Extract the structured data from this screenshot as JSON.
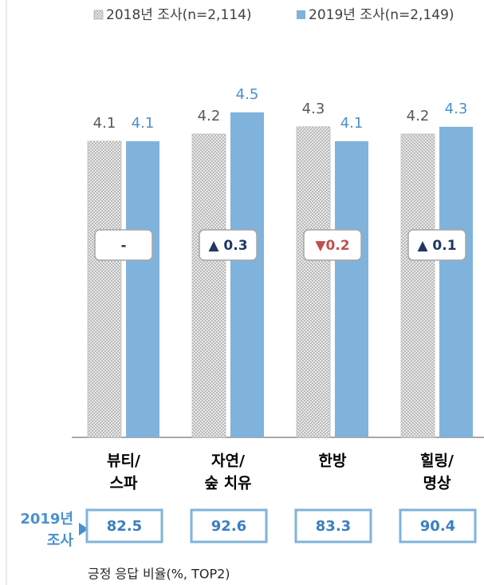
{
  "chart_data": {
    "type": "bar",
    "categories": [
      [
        "뷰티/",
        "스파"
      ],
      [
        "자연/",
        "숲 치유"
      ],
      [
        "한방"
      ],
      [
        "힐링/",
        "명상"
      ]
    ],
    "series": [
      {
        "name": "2018년 조사(n=2,114)",
        "color": "#d9d9d9",
        "pattern": "hatch",
        "label_color": "#595959",
        "values": [
          4.1,
          4.2,
          4.3,
          4.2
        ]
      },
      {
        "name": "2019년 조사(n=2,149)",
        "color": "#7fb3dc",
        "label_color": "#4a90cf",
        "values": [
          4.1,
          4.5,
          4.1,
          4.3
        ]
      }
    ],
    "changes": [
      "-",
      "▲ 0.3",
      "▼0.2",
      "▲ 0.1"
    ],
    "change_colors": [
      "#1f3864",
      "#1f3864",
      "#c0504d",
      "#1f3864"
    ],
    "top2": {
      "label": [
        "2019년",
        "조사"
      ],
      "values": [
        82.5,
        92.6,
        83.3,
        90.4
      ],
      "caption": "긍정 응답 비율(%, TOP2)"
    }
  }
}
